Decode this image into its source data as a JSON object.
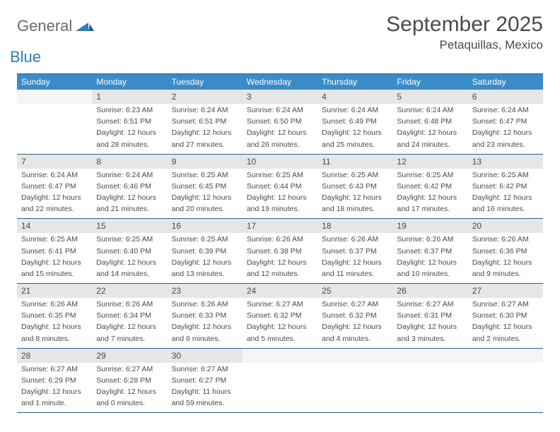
{
  "logo": {
    "text_general": "General",
    "text_blue": "Blue"
  },
  "title": "September 2025",
  "subtitle": "Petaquillas, Mexico",
  "colors": {
    "header_bg": "#3b8bc9",
    "header_text": "#ffffff",
    "border": "#2f5f86",
    "datenum_bg": "#e6e6e6",
    "text": "#4a4a4a",
    "logo_blue": "#2a7dbf"
  },
  "fonts": {
    "title_size": 30,
    "subtitle_size": 17,
    "dayhead_size": 12,
    "cell_size": 10.5
  },
  "day_names": [
    "Sunday",
    "Monday",
    "Tuesday",
    "Wednesday",
    "Thursday",
    "Friday",
    "Saturday"
  ],
  "weeks": [
    [
      null,
      {
        "n": "1",
        "sr": "Sunrise: 6:23 AM",
        "ss": "Sunset: 6:51 PM",
        "d1": "Daylight: 12 hours",
        "d2": "and 28 minutes."
      },
      {
        "n": "2",
        "sr": "Sunrise: 6:24 AM",
        "ss": "Sunset: 6:51 PM",
        "d1": "Daylight: 12 hours",
        "d2": "and 27 minutes."
      },
      {
        "n": "3",
        "sr": "Sunrise: 6:24 AM",
        "ss": "Sunset: 6:50 PM",
        "d1": "Daylight: 12 hours",
        "d2": "and 26 minutes."
      },
      {
        "n": "4",
        "sr": "Sunrise: 6:24 AM",
        "ss": "Sunset: 6:49 PM",
        "d1": "Daylight: 12 hours",
        "d2": "and 25 minutes."
      },
      {
        "n": "5",
        "sr": "Sunrise: 6:24 AM",
        "ss": "Sunset: 6:48 PM",
        "d1": "Daylight: 12 hours",
        "d2": "and 24 minutes."
      },
      {
        "n": "6",
        "sr": "Sunrise: 6:24 AM",
        "ss": "Sunset: 6:47 PM",
        "d1": "Daylight: 12 hours",
        "d2": "and 23 minutes."
      }
    ],
    [
      {
        "n": "7",
        "sr": "Sunrise: 6:24 AM",
        "ss": "Sunset: 6:47 PM",
        "d1": "Daylight: 12 hours",
        "d2": "and 22 minutes."
      },
      {
        "n": "8",
        "sr": "Sunrise: 6:24 AM",
        "ss": "Sunset: 6:46 PM",
        "d1": "Daylight: 12 hours",
        "d2": "and 21 minutes."
      },
      {
        "n": "9",
        "sr": "Sunrise: 6:25 AM",
        "ss": "Sunset: 6:45 PM",
        "d1": "Daylight: 12 hours",
        "d2": "and 20 minutes."
      },
      {
        "n": "10",
        "sr": "Sunrise: 6:25 AM",
        "ss": "Sunset: 6:44 PM",
        "d1": "Daylight: 12 hours",
        "d2": "and 19 minutes."
      },
      {
        "n": "11",
        "sr": "Sunrise: 6:25 AM",
        "ss": "Sunset: 6:43 PM",
        "d1": "Daylight: 12 hours",
        "d2": "and 18 minutes."
      },
      {
        "n": "12",
        "sr": "Sunrise: 6:25 AM",
        "ss": "Sunset: 6:42 PM",
        "d1": "Daylight: 12 hours",
        "d2": "and 17 minutes."
      },
      {
        "n": "13",
        "sr": "Sunrise: 6:25 AM",
        "ss": "Sunset: 6:42 PM",
        "d1": "Daylight: 12 hours",
        "d2": "and 16 minutes."
      }
    ],
    [
      {
        "n": "14",
        "sr": "Sunrise: 6:25 AM",
        "ss": "Sunset: 6:41 PM",
        "d1": "Daylight: 12 hours",
        "d2": "and 15 minutes."
      },
      {
        "n": "15",
        "sr": "Sunrise: 6:25 AM",
        "ss": "Sunset: 6:40 PM",
        "d1": "Daylight: 12 hours",
        "d2": "and 14 minutes."
      },
      {
        "n": "16",
        "sr": "Sunrise: 6:25 AM",
        "ss": "Sunset: 6:39 PM",
        "d1": "Daylight: 12 hours",
        "d2": "and 13 minutes."
      },
      {
        "n": "17",
        "sr": "Sunrise: 6:26 AM",
        "ss": "Sunset: 6:38 PM",
        "d1": "Daylight: 12 hours",
        "d2": "and 12 minutes."
      },
      {
        "n": "18",
        "sr": "Sunrise: 6:26 AM",
        "ss": "Sunset: 6:37 PM",
        "d1": "Daylight: 12 hours",
        "d2": "and 11 minutes."
      },
      {
        "n": "19",
        "sr": "Sunrise: 6:26 AM",
        "ss": "Sunset: 6:37 PM",
        "d1": "Daylight: 12 hours",
        "d2": "and 10 minutes."
      },
      {
        "n": "20",
        "sr": "Sunrise: 6:26 AM",
        "ss": "Sunset: 6:36 PM",
        "d1": "Daylight: 12 hours",
        "d2": "and 9 minutes."
      }
    ],
    [
      {
        "n": "21",
        "sr": "Sunrise: 6:26 AM",
        "ss": "Sunset: 6:35 PM",
        "d1": "Daylight: 12 hours",
        "d2": "and 8 minutes."
      },
      {
        "n": "22",
        "sr": "Sunrise: 6:26 AM",
        "ss": "Sunset: 6:34 PM",
        "d1": "Daylight: 12 hours",
        "d2": "and 7 minutes."
      },
      {
        "n": "23",
        "sr": "Sunrise: 6:26 AM",
        "ss": "Sunset: 6:33 PM",
        "d1": "Daylight: 12 hours",
        "d2": "and 6 minutes."
      },
      {
        "n": "24",
        "sr": "Sunrise: 6:27 AM",
        "ss": "Sunset: 6:32 PM",
        "d1": "Daylight: 12 hours",
        "d2": "and 5 minutes."
      },
      {
        "n": "25",
        "sr": "Sunrise: 6:27 AM",
        "ss": "Sunset: 6:32 PM",
        "d1": "Daylight: 12 hours",
        "d2": "and 4 minutes."
      },
      {
        "n": "26",
        "sr": "Sunrise: 6:27 AM",
        "ss": "Sunset: 6:31 PM",
        "d1": "Daylight: 12 hours",
        "d2": "and 3 minutes."
      },
      {
        "n": "27",
        "sr": "Sunrise: 6:27 AM",
        "ss": "Sunset: 6:30 PM",
        "d1": "Daylight: 12 hours",
        "d2": "and 2 minutes."
      }
    ],
    [
      {
        "n": "28",
        "sr": "Sunrise: 6:27 AM",
        "ss": "Sunset: 6:29 PM",
        "d1": "Daylight: 12 hours",
        "d2": "and 1 minute."
      },
      {
        "n": "29",
        "sr": "Sunrise: 6:27 AM",
        "ss": "Sunset: 6:28 PM",
        "d1": "Daylight: 12 hours",
        "d2": "and 0 minutes."
      },
      {
        "n": "30",
        "sr": "Sunrise: 6:27 AM",
        "ss": "Sunset: 6:27 PM",
        "d1": "Daylight: 11 hours",
        "d2": "and 59 minutes."
      },
      null,
      null,
      null,
      null
    ]
  ]
}
